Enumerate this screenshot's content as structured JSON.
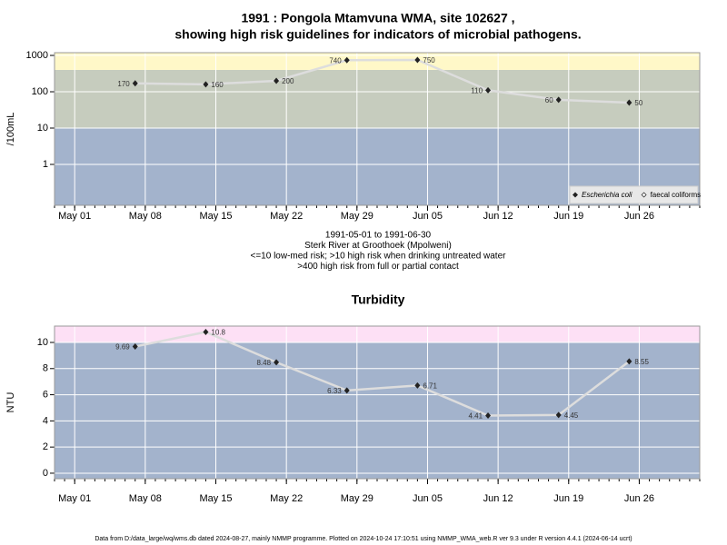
{
  "chart_data": [
    {
      "type": "line",
      "title": [
        "1991 : Pongola Mtamvuna WMA, site 102627 ,",
        "showing high risk guidelines for indicators of microbial pathogens."
      ],
      "ylabel": "/100mL",
      "log_y": true,
      "x": [
        "1991-05-07",
        "1991-05-14",
        "1991-05-21",
        "1991-05-28",
        "1991-06-04",
        "1991-06-11",
        "1991-06-18",
        "1991-06-25"
      ],
      "values": [
        170,
        160,
        200,
        740,
        750,
        110,
        60,
        50
      ],
      "color": "#222222",
      "line_color": "#dddddd",
      "xlim": [
        "1991-04-29",
        "1991-07-02"
      ],
      "xticks": [
        {
          "value": "1991-05-01",
          "label": "May 01"
        },
        {
          "value": "1991-05-08",
          "label": "May 08"
        },
        {
          "value": "1991-05-15",
          "label": "May 15"
        },
        {
          "value": "1991-05-22",
          "label": "May 22"
        },
        {
          "value": "1991-05-29",
          "label": "May 29"
        },
        {
          "value": "1991-06-05",
          "label": "Jun 05"
        },
        {
          "value": "1991-06-12",
          "label": "Jun 12"
        },
        {
          "value": "1991-06-19",
          "label": "Jun 19"
        },
        {
          "value": "1991-06-26",
          "label": "Jun 26"
        }
      ],
      "ylim": [
        0.075,
        1190
      ],
      "yticks": [
        1,
        10,
        100,
        1000
      ],
      "grid": true,
      "bands": [
        {
          "to": 10,
          "color": "#a3b3cc"
        },
        {
          "from": 10,
          "to": 400,
          "color": "#c6ccbe"
        },
        {
          "from": 400,
          "color": "#fff8c8"
        }
      ],
      "legend": [
        {
          "name": "Escherichia coli",
          "marker": "filled"
        },
        {
          "name": "faecal coliforms",
          "marker": "open"
        }
      ],
      "legend_position": "lower right",
      "notes": [
        "1991-05-01 to 1991-06-30",
        "Sterk River at Groothoek (Mpolweni)",
        "<=10 low-med risk; >10 high risk when drinking untreated water",
        ">400 high risk from full or partial contact"
      ]
    },
    {
      "type": "line",
      "title": [
        "Turbidity"
      ],
      "ylabel": "NTU",
      "log_y": false,
      "x": [
        "1991-05-07",
        "1991-05-14",
        "1991-05-21",
        "1991-05-28",
        "1991-06-04",
        "1991-06-11",
        "1991-06-18",
        "1991-06-25"
      ],
      "values": [
        9.69,
        10.8,
        8.48,
        6.33,
        6.71,
        4.41,
        4.45,
        8.55
      ],
      "color": "#222222",
      "line_color": "#dddddd",
      "xlim": [
        "1991-04-29",
        "1991-07-02"
      ],
      "xticks": [
        {
          "value": "1991-05-01",
          "label": "May 01"
        },
        {
          "value": "1991-05-08",
          "label": "May 08"
        },
        {
          "value": "1991-05-15",
          "label": "May 15"
        },
        {
          "value": "1991-05-22",
          "label": "May 22"
        },
        {
          "value": "1991-05-29",
          "label": "May 29"
        },
        {
          "value": "1991-06-05",
          "label": "Jun 05"
        },
        {
          "value": "1991-06-12",
          "label": "Jun 12"
        },
        {
          "value": "1991-06-19",
          "label": "Jun 19"
        },
        {
          "value": "1991-06-26",
          "label": "Jun 26"
        }
      ],
      "ylim": [
        -0.42,
        11.25
      ],
      "yticks": [
        0,
        2,
        4,
        6,
        8,
        10
      ],
      "grid": true,
      "bands": [
        {
          "to": 10,
          "color": "#a3b3cc"
        },
        {
          "from": 10,
          "color": "#fde0f5"
        }
      ]
    }
  ],
  "footer": "Data from D:/data_large/wq/wms.db dated 2024-08-27, mainly NMMP programme. Plotted on 2024-10-24 17:10:51 using NMMP_WMA_web.R ver 9.3 under R version 4.4.1 (2024-06-14 ucrt)"
}
